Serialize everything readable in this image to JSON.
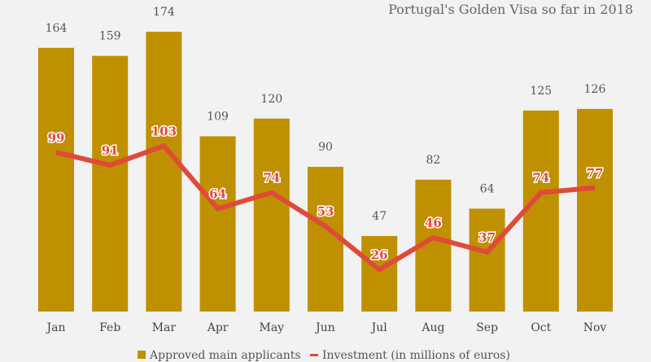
{
  "chart_data": {
    "type": "bar",
    "title": "Portugal's Golden Visa so far in 2018",
    "categories": [
      "Jan",
      "Feb",
      "Mar",
      "Apr",
      "May",
      "Jun",
      "Jul",
      "Aug",
      "Sep",
      "Oct",
      "Nov"
    ],
    "series": [
      {
        "name": "Approved main applicants",
        "type": "bar",
        "color": "#bf9000",
        "values": [
          164,
          159,
          174,
          109,
          120,
          90,
          47,
          82,
          64,
          125,
          126
        ]
      },
      {
        "name": "Investment (in millions of euros)",
        "type": "line",
        "color": "#e04a3a",
        "values": [
          99,
          91,
          103,
          64,
          74,
          53,
          26,
          46,
          37,
          74,
          77
        ]
      }
    ],
    "ylim": [
      0,
      180
    ],
    "grid": false,
    "legend": "bottom",
    "background": "#f2f2f2"
  }
}
